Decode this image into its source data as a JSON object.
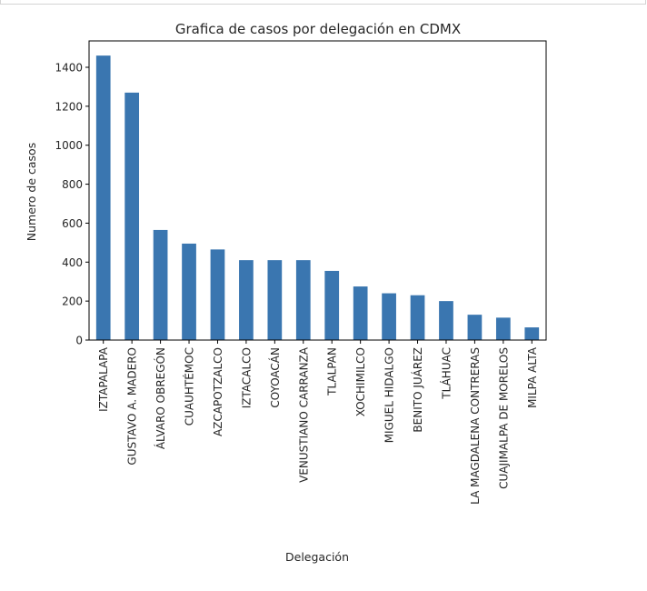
{
  "chart_data": {
    "type": "bar",
    "title": "Grafica de casos por delegación en CDMX",
    "xlabel": "Delegación",
    "ylabel": "Numero de casos",
    "ylim": [
      0,
      1500
    ],
    "yticks": [
      0,
      200,
      400,
      600,
      800,
      1000,
      1200,
      1400
    ],
    "bar_color": "#3a76b0",
    "grid": false,
    "categories": [
      "IZTAPALAPA",
      "GUSTAVO A. MADERO",
      "ÁLVARO OBREGÓN",
      "CUAUHTÉMOC",
      "AZCAPOTZALCO",
      "IZTACALCO",
      "COYOACÁN",
      "VENUSTIANO CARRANZA",
      "TLALPAN",
      "XOCHIMILCO",
      "MIGUEL HIDALGO",
      "BENITO JUÁREZ",
      "TLÁHUAC",
      "LA MAGDALENA CONTRERAS",
      "CUAJIMALPA DE MORELOS",
      "MILPA ALTA"
    ],
    "values": [
      1460,
      1270,
      565,
      495,
      465,
      410,
      410,
      410,
      355,
      275,
      240,
      230,
      200,
      130,
      115,
      65
    ]
  }
}
